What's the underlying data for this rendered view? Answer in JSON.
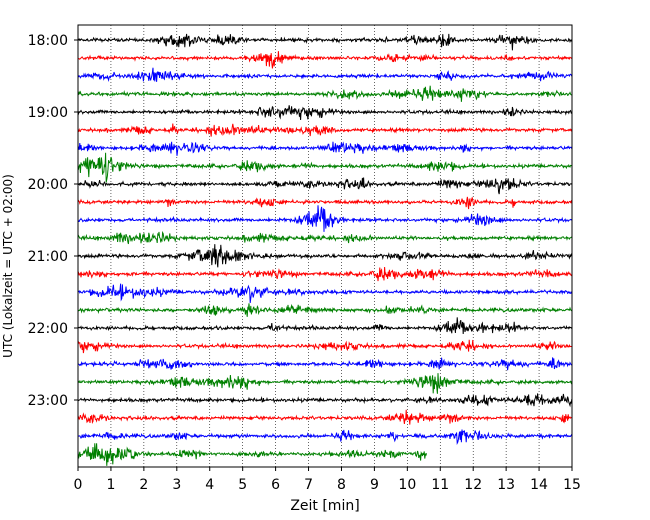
{
  "chart_data": {
    "type": "line",
    "title": "",
    "xlabel": "Zeit  [min]",
    "ylabel": "UTC (Lokalzeit = UTC + 02:00)",
    "xlim": [
      0,
      15
    ],
    "xticks": [
      "0",
      "1",
      "2",
      "3",
      "4",
      "5",
      "6",
      "7",
      "8",
      "9",
      "10",
      "11",
      "12",
      "13",
      "14",
      "15"
    ],
    "yticks": [
      "18:00",
      "19:00",
      "20:00",
      "21:00",
      "22:00",
      "23:00"
    ],
    "grid": "vertical dotted",
    "legend": "none",
    "trace_interval_minutes": 15,
    "trace_colors": [
      "#000000",
      "#ff0000",
      "#0000ff",
      "#008000"
    ],
    "traces": [
      {
        "start": "18:00",
        "end_min": 15
      },
      {
        "start": "18:15",
        "end_min": 15
      },
      {
        "start": "18:30",
        "end_min": 15
      },
      {
        "start": "18:45",
        "end_min": 15
      },
      {
        "start": "19:00",
        "end_min": 15
      },
      {
        "start": "19:15",
        "end_min": 15
      },
      {
        "start": "19:30",
        "end_min": 15
      },
      {
        "start": "19:45",
        "end_min": 15
      },
      {
        "start": "20:00",
        "end_min": 15
      },
      {
        "start": "20:15",
        "end_min": 15
      },
      {
        "start": "20:30",
        "end_min": 15
      },
      {
        "start": "20:45",
        "end_min": 15
      },
      {
        "start": "21:00",
        "end_min": 15
      },
      {
        "start": "21:15",
        "end_min": 15
      },
      {
        "start": "21:30",
        "end_min": 15
      },
      {
        "start": "21:45",
        "end_min": 15
      },
      {
        "start": "22:00",
        "end_min": 15
      },
      {
        "start": "22:15",
        "end_min": 15
      },
      {
        "start": "22:30",
        "end_min": 15
      },
      {
        "start": "22:45",
        "end_min": 15
      },
      {
        "start": "23:00",
        "end_min": 15
      },
      {
        "start": "23:15",
        "end_min": 15
      },
      {
        "start": "23:30",
        "end_min": 15
      },
      {
        "start": "23:45",
        "end_min": 10.6
      }
    ]
  }
}
